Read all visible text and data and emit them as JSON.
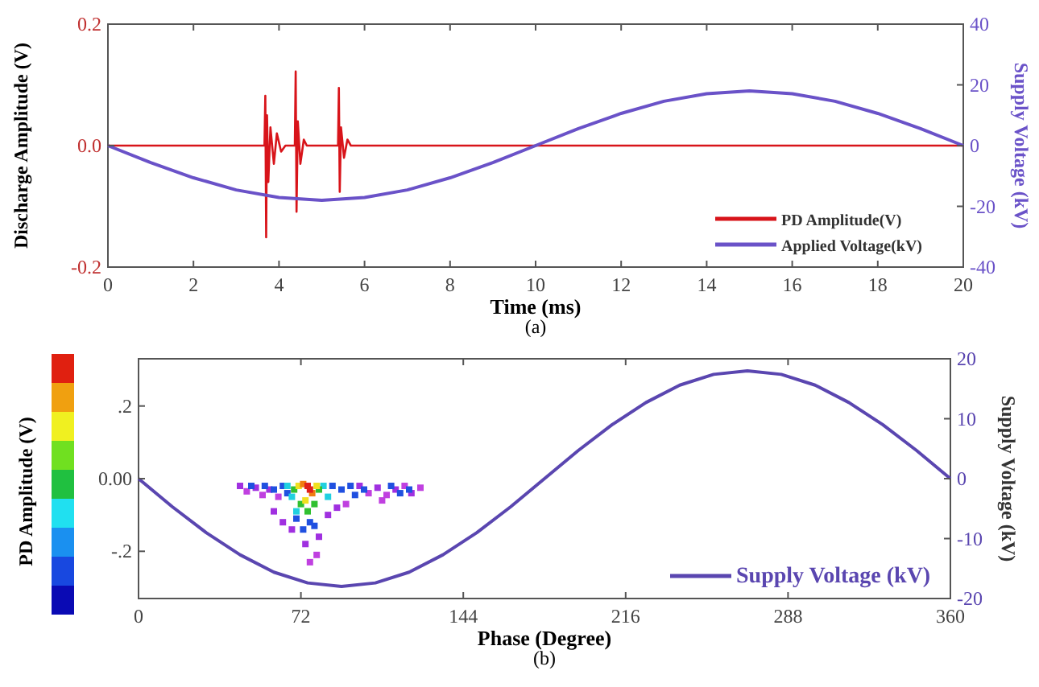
{
  "chart_data": [
    {
      "type": "line",
      "xlabel": "Time (ms)",
      "ylabel": "Discharge Amplitude (V)",
      "y2label": "Supply Voltage (kV)",
      "annotations": [
        "(a)"
      ],
      "xlim": [
        0,
        20
      ],
      "xticks": [
        0,
        2,
        4,
        6,
        8,
        10,
        12,
        14,
        16,
        18,
        20
      ],
      "ylim": [
        -0.2,
        0.2
      ],
      "yticks": [
        {
          "value": -0.2,
          "label": "-0.2"
        },
        {
          "value": 0,
          "label": "0.0"
        },
        {
          "value": 0.2,
          "label": "0.2"
        }
      ],
      "y2lim": [
        -40,
        40
      ],
      "y2ticks": [
        -40,
        -20,
        0,
        20,
        40
      ],
      "legend": "bottom right",
      "grid": false,
      "series": [
        {
          "name": "PD Amplitude(V)",
          "color": "#d8141a",
          "x": [
            0,
            3.66,
            3.68,
            3.7,
            3.72,
            3.75,
            3.8,
            3.88,
            3.95,
            4.05,
            4.15,
            4.37,
            4.39,
            4.41,
            4.44,
            4.5,
            4.58,
            4.65,
            5.38,
            5.4,
            5.42,
            5.45,
            5.52,
            5.6,
            5.68,
            17.2,
            20
          ],
          "values": [
            0,
            0,
            0.082,
            -0.151,
            0.05,
            -0.06,
            0.03,
            -0.03,
            0.02,
            -0.01,
            0,
            0,
            0.122,
            -0.109,
            0.04,
            -0.03,
            0.01,
            0,
            0,
            0.095,
            -0.076,
            0.03,
            -0.02,
            0.01,
            0,
            0,
            0
          ]
        },
        {
          "name": "Applied Voltage(kV)",
          "color": "#6a52c8",
          "axis": "y2",
          "x": [
            0,
            1,
            2,
            3,
            4,
            5,
            6,
            7,
            8,
            9,
            10,
            11,
            12,
            13,
            14,
            15,
            16,
            17,
            18,
            19,
            20
          ],
          "values": [
            0,
            -5.6,
            -10.6,
            -14.6,
            -17.1,
            -18,
            -17.1,
            -14.6,
            -10.6,
            -5.6,
            0,
            5.6,
            10.6,
            14.6,
            17.1,
            18,
            17.1,
            14.6,
            10.6,
            5.6,
            0
          ]
        }
      ]
    },
    {
      "type": "scatter",
      "xlabel": "Phase (Degree)",
      "ylabel": "PD Amplitude (V)",
      "y2label": "Supply Voltage (kV)",
      "annotations": [
        "(b)"
      ],
      "xlim": [
        0,
        360
      ],
      "xticks": [
        0,
        72,
        144,
        216,
        288,
        360
      ],
      "ylim": [
        -0.33,
        0.33
      ],
      "yticks": [
        {
          "value": -0.2,
          "label": "-.2"
        },
        {
          "value": 0,
          "label": "0.00"
        },
        {
          "value": 0.2,
          "label": ".2"
        }
      ],
      "y2lim": [
        -20,
        20
      ],
      "y2ticks": [
        -20,
        -10,
        0,
        10,
        20
      ],
      "legend": "bottom right",
      "grid": false,
      "series": [
        {
          "marker": "square",
          "x": [
            45,
            48,
            52,
            55,
            58,
            62,
            98,
            102,
            106,
            110,
            114,
            118,
            121,
            125,
            108,
            92,
            50,
            56,
            60,
            64,
            66,
            86,
            90,
            94,
            96,
            100,
            112,
            116,
            120,
            66,
            68,
            82,
            84,
            70,
            69,
            80,
            72,
            78,
            75,
            71,
            79,
            74,
            73,
            77,
            75,
            76,
            70,
            76,
            73,
            78,
            60,
            64,
            68,
            74,
            80,
            79,
            76,
            84,
            88
          ],
          "values": [
            -0.02,
            -0.035,
            -0.025,
            -0.045,
            -0.03,
            -0.05,
            -0.02,
            -0.04,
            -0.025,
            -0.045,
            -0.03,
            -0.02,
            -0.04,
            -0.025,
            -0.06,
            -0.07,
            -0.02,
            -0.02,
            -0.03,
            -0.02,
            -0.04,
            -0.02,
            -0.03,
            -0.02,
            -0.045,
            -0.03,
            -0.02,
            -0.04,
            -0.03,
            -0.02,
            -0.05,
            -0.02,
            -0.05,
            -0.09,
            -0.03,
            -0.03,
            -0.07,
            -0.07,
            -0.09,
            -0.02,
            -0.02,
            -0.06,
            -0.015,
            -0.04,
            -0.02,
            -0.03,
            -0.11,
            -0.12,
            -0.14,
            -0.13,
            -0.09,
            -0.12,
            -0.14,
            -0.18,
            -0.16,
            -0.21,
            -0.23,
            -0.1,
            -0.08
          ],
          "colors": [
            "#a030e0",
            "#c040e0",
            "#a030e0",
            "#c040e0",
            "#a030e0",
            "#c040e0",
            "#a030e0",
            "#c040e0",
            "#a030e0",
            "#c040e0",
            "#a030e0",
            "#c040e0",
            "#a030e0",
            "#c040e0",
            "#c040e0",
            "#c040e0",
            "#2050e0",
            "#2050e0",
            "#2050e0",
            "#2050e0",
            "#2050e0",
            "#2050e0",
            "#2050e0",
            "#2050e0",
            "#2050e0",
            "#2050e0",
            "#2050e0",
            "#2050e0",
            "#2050e0",
            "#20d0e0",
            "#20d0e0",
            "#20d0e0",
            "#20d0e0",
            "#20d0e0",
            "#30c030",
            "#30c030",
            "#30c030",
            "#30c030",
            "#30c030",
            "#f0e020",
            "#f0e020",
            "#f0e020",
            "#f07d10",
            "#f07d10",
            "#e0201a",
            "#e0201a",
            "#2050e0",
            "#2050e0",
            "#2050e0",
            "#2050e0",
            "#a030e0",
            "#a030e0",
            "#a030e0",
            "#a030e0",
            "#a030e0",
            "#c040e0",
            "#c040e0",
            "#a030e0",
            "#a030e0"
          ]
        },
        {
          "type": "line",
          "name": "Supply Voltage (kV)",
          "color": "#5a46b0",
          "axis": "y2",
          "x": [
            0,
            15,
            30,
            45,
            60,
            75,
            90,
            105,
            120,
            135,
            150,
            165,
            180,
            195,
            210,
            225,
            240,
            255,
            270,
            285,
            300,
            315,
            330,
            345,
            360
          ],
          "values": [
            0,
            -4.7,
            -9,
            -12.7,
            -15.6,
            -17.4,
            -18,
            -17.4,
            -15.6,
            -12.7,
            -9,
            -4.7,
            0,
            4.7,
            9,
            12.7,
            15.6,
            17.4,
            18,
            17.4,
            15.6,
            12.7,
            9,
            4.7,
            0
          ]
        }
      ]
    }
  ]
}
